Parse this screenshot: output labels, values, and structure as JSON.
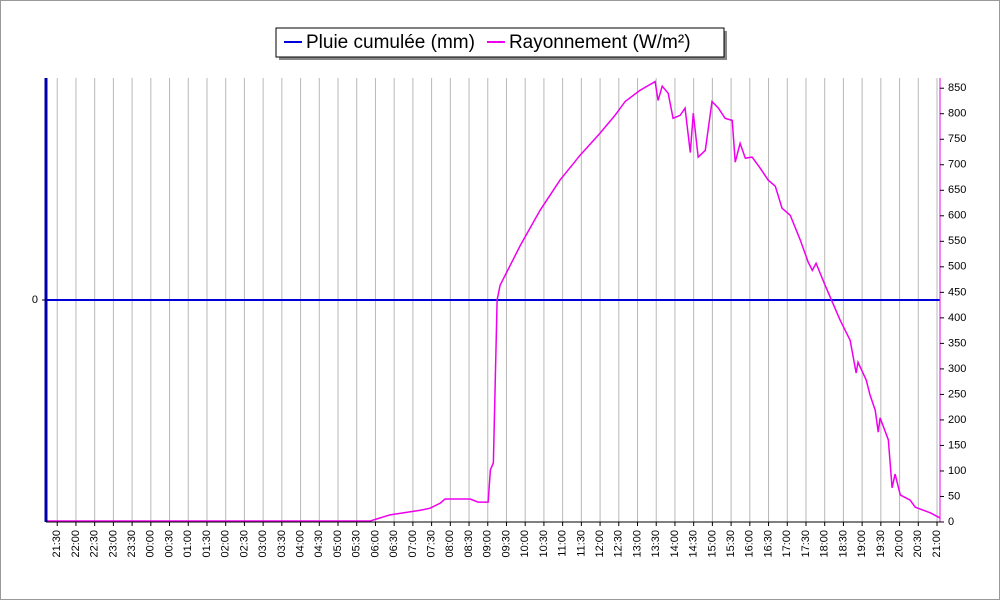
{
  "chart_data": {
    "type": "line",
    "legend": "top",
    "grid": true,
    "xlim": [
      21.2,
      45.08
    ],
    "xticks": [
      {
        "value": 21.5,
        "label": "21:30"
      },
      {
        "value": 22,
        "label": "22:00"
      },
      {
        "value": 22.5,
        "label": "22:30"
      },
      {
        "value": 23,
        "label": "23:00"
      },
      {
        "value": 23.5,
        "label": "23:30"
      },
      {
        "value": 24,
        "label": "00:00"
      },
      {
        "value": 24.5,
        "label": "00:30"
      },
      {
        "value": 25,
        "label": "01:00"
      },
      {
        "value": 25.5,
        "label": "01:30"
      },
      {
        "value": 26,
        "label": "02:00"
      },
      {
        "value": 26.5,
        "label": "02:30"
      },
      {
        "value": 27,
        "label": "03:00"
      },
      {
        "value": 27.5,
        "label": "03:30"
      },
      {
        "value": 28,
        "label": "04:00"
      },
      {
        "value": 28.5,
        "label": "04:30"
      },
      {
        "value": 29,
        "label": "05:00"
      },
      {
        "value": 29.5,
        "label": "05:30"
      },
      {
        "value": 30,
        "label": "06:00"
      },
      {
        "value": 30.5,
        "label": "06:30"
      },
      {
        "value": 31,
        "label": "07:00"
      },
      {
        "value": 31.5,
        "label": "07:30"
      },
      {
        "value": 32,
        "label": "08:00"
      },
      {
        "value": 32.5,
        "label": "08:30"
      },
      {
        "value": 33,
        "label": "09:00"
      },
      {
        "value": 33.5,
        "label": "09:30"
      },
      {
        "value": 34,
        "label": "10:00"
      },
      {
        "value": 34.5,
        "label": "10:30"
      },
      {
        "value": 35,
        "label": "11:00"
      },
      {
        "value": 35.5,
        "label": "11:30"
      },
      {
        "value": 36,
        "label": "12:00"
      },
      {
        "value": 36.5,
        "label": "12:30"
      },
      {
        "value": 37,
        "label": "13:00"
      },
      {
        "value": 37.5,
        "label": "13:30"
      },
      {
        "value": 38,
        "label": "14:00"
      },
      {
        "value": 38.5,
        "label": "14:30"
      },
      {
        "value": 39,
        "label": "15:00"
      },
      {
        "value": 39.5,
        "label": "15:30"
      },
      {
        "value": 40,
        "label": "16:00"
      },
      {
        "value": 40.5,
        "label": "16:30"
      },
      {
        "value": 41,
        "label": "17:00"
      },
      {
        "value": 41.5,
        "label": "17:30"
      },
      {
        "value": 42,
        "label": "18:00"
      },
      {
        "value": 42.5,
        "label": "18:30"
      },
      {
        "value": 43,
        "label": "19:00"
      },
      {
        "value": 43.5,
        "label": "19:30"
      },
      {
        "value": 44,
        "label": "20:00"
      },
      {
        "value": 44.5,
        "label": "20:30"
      },
      {
        "value": 45,
        "label": "21:00"
      }
    ],
    "ylim": [
      -1,
      1
    ],
    "yticks": [
      0
    ],
    "y2lim": [
      0,
      870
    ],
    "y2ticks": [
      0,
      50,
      100,
      150,
      200,
      250,
      300,
      350,
      400,
      450,
      500,
      550,
      600,
      650,
      700,
      750,
      800,
      850
    ],
    "series": [
      {
        "name": "Pluie cumulée (mm)",
        "color": "#0000dd",
        "axis": "y",
        "x": [
          21.2,
          45.08
        ],
        "values": [
          0,
          0
        ]
      },
      {
        "name": "Rayonnement (W/m²)",
        "color": "#ee00ee",
        "axis": "y2",
        "x": [
          21.2,
          29.86,
          30.39,
          31.2,
          31.46,
          31.73,
          31.86,
          32.53,
          32.74,
          33.01,
          33.07,
          33.15,
          33.25,
          33.33,
          33.6,
          33.87,
          34.4,
          34.93,
          35.47,
          36.0,
          36.4,
          36.67,
          37.07,
          37.47,
          37.55,
          37.66,
          37.82,
          37.95,
          38.14,
          38.27,
          38.41,
          38.49,
          38.62,
          38.81,
          38.99,
          39.16,
          39.34,
          39.53,
          39.61,
          39.74,
          39.88,
          40.06,
          40.28,
          40.49,
          40.68,
          40.86,
          41.08,
          41.35,
          41.56,
          41.67,
          41.77,
          42.01,
          42.41,
          42.68,
          42.84,
          42.89,
          43.11,
          43.21,
          43.35,
          43.43,
          43.48,
          43.7,
          43.8,
          43.88,
          44.02,
          44.28,
          44.42,
          44.82,
          45.08
        ],
        "values": [
          2,
          2,
          14,
          23,
          27,
          37,
          45,
          45,
          39,
          39,
          102,
          116,
          435,
          464,
          503,
          542,
          611,
          670,
          719,
          762,
          797,
          824,
          846,
          863,
          826,
          854,
          840,
          791,
          797,
          811,
          724,
          801,
          715,
          728,
          824,
          811,
          791,
          787,
          705,
          742,
          713,
          715,
          693,
          670,
          658,
          615,
          601,
          552,
          509,
          493,
          507,
          464,
          396,
          356,
          292,
          313,
          278,
          249,
          219,
          176,
          204,
          161,
          67,
          94,
          53,
          43,
          29,
          18,
          8
        ]
      }
    ]
  }
}
